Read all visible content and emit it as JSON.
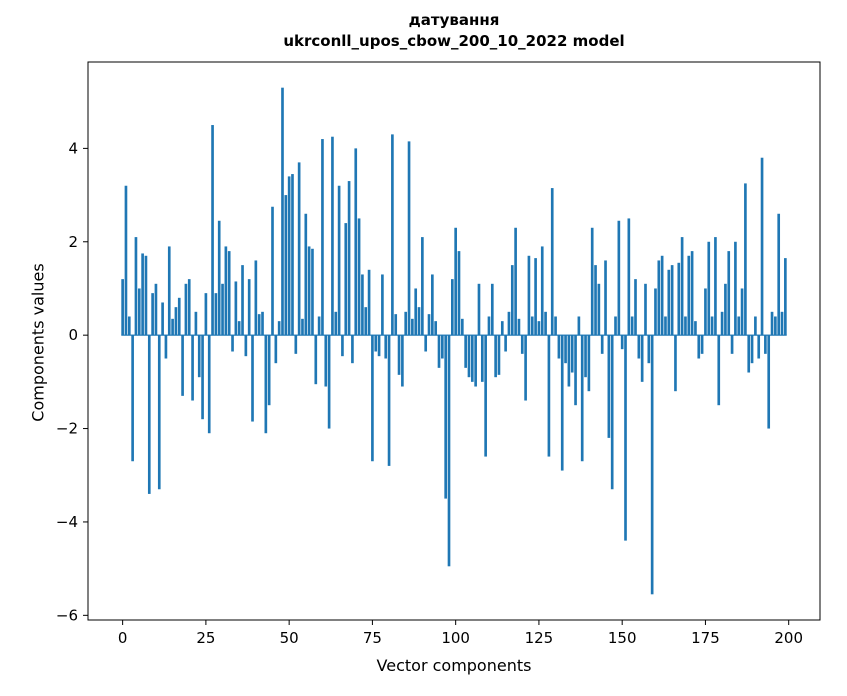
{
  "figure": {
    "title": "датування",
    "subtitle": "ukrconll_upos_cbow_200_10_2022 model",
    "xlabel": "Vector components",
    "ylabel": "Components values"
  },
  "chart_data": {
    "type": "bar",
    "title": "датування",
    "subtitle": "ukrconll_upos_cbow_200_10_2022 model",
    "xlabel": "Vector components",
    "ylabel": "Components values",
    "bar_color": "#1f77b4",
    "grid": false,
    "legend": null,
    "xlim": [
      -10.4,
      209.4
    ],
    "ylim": [
      -6.1,
      5.85
    ],
    "xticks": [
      0,
      25,
      50,
      75,
      100,
      125,
      150,
      175,
      200
    ],
    "yticks": [
      -6,
      -4,
      -2,
      0,
      2,
      4
    ],
    "x_start": 0,
    "values": [
      1.2,
      3.2,
      0.4,
      -2.7,
      2.1,
      1.0,
      1.75,
      1.7,
      -3.4,
      0.9,
      1.1,
      -3.3,
      0.7,
      -0.5,
      1.9,
      0.35,
      0.6,
      0.8,
      -1.3,
      1.1,
      1.2,
      -1.4,
      0.5,
      -0.9,
      -1.8,
      0.9,
      -2.1,
      4.5,
      0.9,
      2.45,
      1.1,
      1.9,
      1.8,
      -0.35,
      1.15,
      0.3,
      1.5,
      -0.45,
      1.2,
      -1.85,
      1.6,
      0.45,
      0.5,
      -2.1,
      -1.5,
      2.75,
      -0.6,
      0.3,
      5.3,
      3.0,
      3.4,
      3.45,
      -0.4,
      3.7,
      0.35,
      2.6,
      1.9,
      1.85,
      -1.05,
      0.4,
      4.2,
      -1.1,
      -2.0,
      4.25,
      0.5,
      3.2,
      -0.45,
      2.4,
      3.3,
      -0.6,
      4.0,
      2.5,
      1.3,
      0.6,
      1.4,
      -2.7,
      -0.35,
      -0.45,
      1.3,
      -0.5,
      -2.8,
      4.3,
      0.45,
      -0.85,
      -1.1,
      0.5,
      4.15,
      0.35,
      1.0,
      0.6,
      2.1,
      -0.35,
      0.45,
      1.3,
      0.3,
      -0.7,
      -0.5,
      -3.5,
      -4.95,
      1.2,
      2.3,
      1.8,
      0.35,
      -0.7,
      -0.9,
      -1.0,
      -1.1,
      1.1,
      -1.0,
      -2.6,
      0.4,
      1.1,
      -0.9,
      -0.85,
      0.3,
      -0.35,
      0.5,
      1.5,
      2.3,
      0.35,
      -0.4,
      -1.4,
      1.7,
      0.4,
      1.65,
      0.3,
      1.9,
      0.5,
      -2.6,
      3.15,
      0.4,
      -0.5,
      -2.9,
      -0.6,
      -1.1,
      -0.8,
      -1.5,
      0.4,
      -2.7,
      -0.9,
      -1.2,
      2.3,
      1.5,
      1.1,
      -0.4,
      1.6,
      -2.2,
      -3.3,
      0.4,
      2.45,
      -0.3,
      -4.4,
      2.5,
      0.4,
      1.2,
      -0.5,
      -1.0,
      1.1,
      -0.6,
      -5.55,
      1.0,
      1.6,
      1.7,
      0.4,
      1.4,
      1.5,
      -1.2,
      1.55,
      2.1,
      0.4,
      1.7,
      1.8,
      0.3,
      -0.5,
      -0.4,
      1.0,
      2.0,
      0.4,
      2.1,
      -1.5,
      0.5,
      1.1,
      1.8,
      -0.4,
      2.0,
      0.4,
      1.0,
      3.25,
      -0.8,
      -0.6,
      0.4,
      -0.5,
      3.8,
      -0.4,
      -2.0,
      0.5,
      0.4,
      2.6,
      0.5,
      1.65
    ]
  }
}
